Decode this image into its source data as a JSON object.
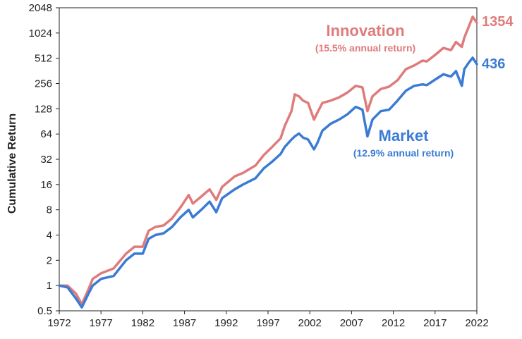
{
  "chart_data": {
    "type": "line",
    "title": "",
    "xlabel": "",
    "ylabel": "Cumulative Return",
    "y_scale": "log2",
    "ylim": [
      0.5,
      2048
    ],
    "xlim": [
      1972,
      2022
    ],
    "grid": false,
    "x_ticks": [
      "1972",
      "1977",
      "1982",
      "1987",
      "1992",
      "1997",
      "2002",
      "2007",
      "2012",
      "2017",
      "2022"
    ],
    "y_ticks": [
      "0.5",
      "1",
      "2",
      "4",
      "8",
      "16",
      "32",
      "64",
      "128",
      "256",
      "512",
      "1024",
      "2048"
    ],
    "series": [
      {
        "name": "Innovation",
        "subtitle": "(15.5% annual return)",
        "end_label": "1354",
        "color": "#e07b7b",
        "x": [
          1972.0,
          1973.0,
          1974.0,
          1974.7,
          1975.5,
          1976.0,
          1977.0,
          1978.5,
          1980.0,
          1981.0,
          1982.0,
          1982.7,
          1983.5,
          1984.5,
          1985.5,
          1986.5,
          1987.5,
          1988.0,
          1989.0,
          1990.0,
          1990.8,
          1991.5,
          1993.0,
          1994.0,
          1995.5,
          1996.5,
          1997.5,
          1998.5,
          1999.0,
          1999.8,
          2000.2,
          2000.7,
          2001.2,
          2001.8,
          2002.5,
          2002.9,
          2003.5,
          2004.5,
          2005.5,
          2006.5,
          2007.5,
          2008.3,
          2008.9,
          2009.5,
          2010.5,
          2011.5,
          2012.5,
          2013.5,
          2014.5,
          2015.5,
          2016.0,
          2017.0,
          2018.0,
          2018.9,
          2019.5,
          2020.2,
          2020.5,
          2021.0,
          2021.5,
          2022.0
        ],
        "y": [
          1.0,
          1.0,
          0.8,
          0.6,
          0.9,
          1.2,
          1.4,
          1.6,
          2.4,
          2.9,
          2.9,
          4.5,
          5.0,
          5.2,
          6.3,
          8.5,
          12.0,
          9.5,
          11.5,
          14.0,
          10.5,
          15.0,
          20.0,
          22.0,
          27.0,
          36.0,
          45.0,
          57.0,
          80.0,
          120.0,
          190.0,
          180.0,
          160.0,
          150.0,
          95.0,
          115.0,
          150.0,
          160.0,
          175.0,
          200.0,
          240.0,
          230.0,
          120.0,
          180.0,
          220.0,
          235.0,
          280.0,
          380.0,
          420.0,
          480.0,
          470.0,
          560.0,
          680.0,
          640.0,
          800.0,
          700.0,
          900.0,
          1200.0,
          1600.0,
          1354.0
        ]
      },
      {
        "name": "Market",
        "subtitle": "(12.9% annual return)",
        "end_label": "436",
        "color": "#3a7bd5",
        "x": [
          1972.0,
          1973.0,
          1974.0,
          1974.7,
          1975.5,
          1976.0,
          1977.0,
          1978.5,
          1980.0,
          1981.0,
          1982.0,
          1982.7,
          1983.5,
          1984.5,
          1985.5,
          1986.5,
          1987.5,
          1988.0,
          1989.0,
          1990.0,
          1990.8,
          1991.5,
          1993.0,
          1994.0,
          1995.5,
          1996.5,
          1997.5,
          1998.5,
          1999.0,
          1999.8,
          2000.2,
          2000.7,
          2001.2,
          2001.8,
          2002.5,
          2002.9,
          2003.5,
          2004.5,
          2005.5,
          2006.5,
          2007.5,
          2008.3,
          2008.9,
          2009.5,
          2010.5,
          2011.5,
          2012.5,
          2013.5,
          2014.5,
          2015.5,
          2016.0,
          2017.0,
          2018.0,
          2018.9,
          2019.5,
          2020.2,
          2020.5,
          2021.0,
          2021.5,
          2022.0
        ],
        "y": [
          1.0,
          0.95,
          0.7,
          0.55,
          0.8,
          1.0,
          1.2,
          1.3,
          2.0,
          2.4,
          2.4,
          3.6,
          4.0,
          4.2,
          5.0,
          6.5,
          8.0,
          6.5,
          8.0,
          10.0,
          7.5,
          11.0,
          14.0,
          16.0,
          19.0,
          25.0,
          30.0,
          37.0,
          45.0,
          55.0,
          60.0,
          65.0,
          58.0,
          55.0,
          42.0,
          50.0,
          70.0,
          85.0,
          95.0,
          110.0,
          135.0,
          125.0,
          60.0,
          95.0,
          120.0,
          125.0,
          160.0,
          210.0,
          240.0,
          250.0,
          245.0,
          285.0,
          330.0,
          310.0,
          360.0,
          240.0,
          380.0,
          450.0,
          520.0,
          436.0
        ]
      }
    ]
  }
}
